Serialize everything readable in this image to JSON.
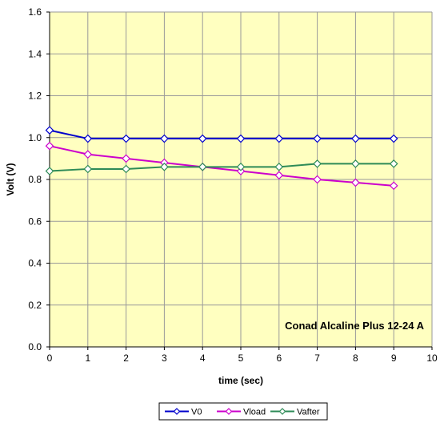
{
  "chart_data": {
    "type": "line",
    "annotation": "Conad Alcaline Plus 12-24 A",
    "xlabel": "time (sec)",
    "ylabel": "Volt (V)",
    "xlim": [
      0,
      10
    ],
    "ylim": [
      0,
      1.6
    ],
    "x_ticks": [
      "0",
      "1",
      "2",
      "3",
      "4",
      "5",
      "6",
      "7",
      "8",
      "9",
      "10"
    ],
    "y_ticks": [
      "0.0",
      "0.2",
      "0.4",
      "0.6",
      "0.8",
      "1.0",
      "1.2",
      "1.4",
      "1.6"
    ],
    "grid": true,
    "plot_background": "#ffffc0",
    "legend_position": "bottom",
    "x": [
      0,
      1,
      2,
      3,
      4,
      5,
      6,
      7,
      8,
      9
    ],
    "series": [
      {
        "name": "V0",
        "color": "#0000cc",
        "values": [
          1.035,
          0.995,
          0.995,
          0.995,
          0.995,
          0.995,
          0.995,
          0.995,
          0.995,
          0.995
        ]
      },
      {
        "name": "Vload",
        "color": "#cc00cc",
        "values": [
          0.96,
          0.92,
          0.9,
          0.88,
          0.86,
          0.84,
          0.82,
          0.8,
          0.785,
          0.77
        ]
      },
      {
        "name": "Vafter",
        "color": "#2e8b57",
        "values": [
          0.84,
          0.85,
          0.85,
          0.86,
          0.86,
          0.86,
          0.86,
          0.875,
          0.875,
          0.875
        ]
      }
    ]
  }
}
